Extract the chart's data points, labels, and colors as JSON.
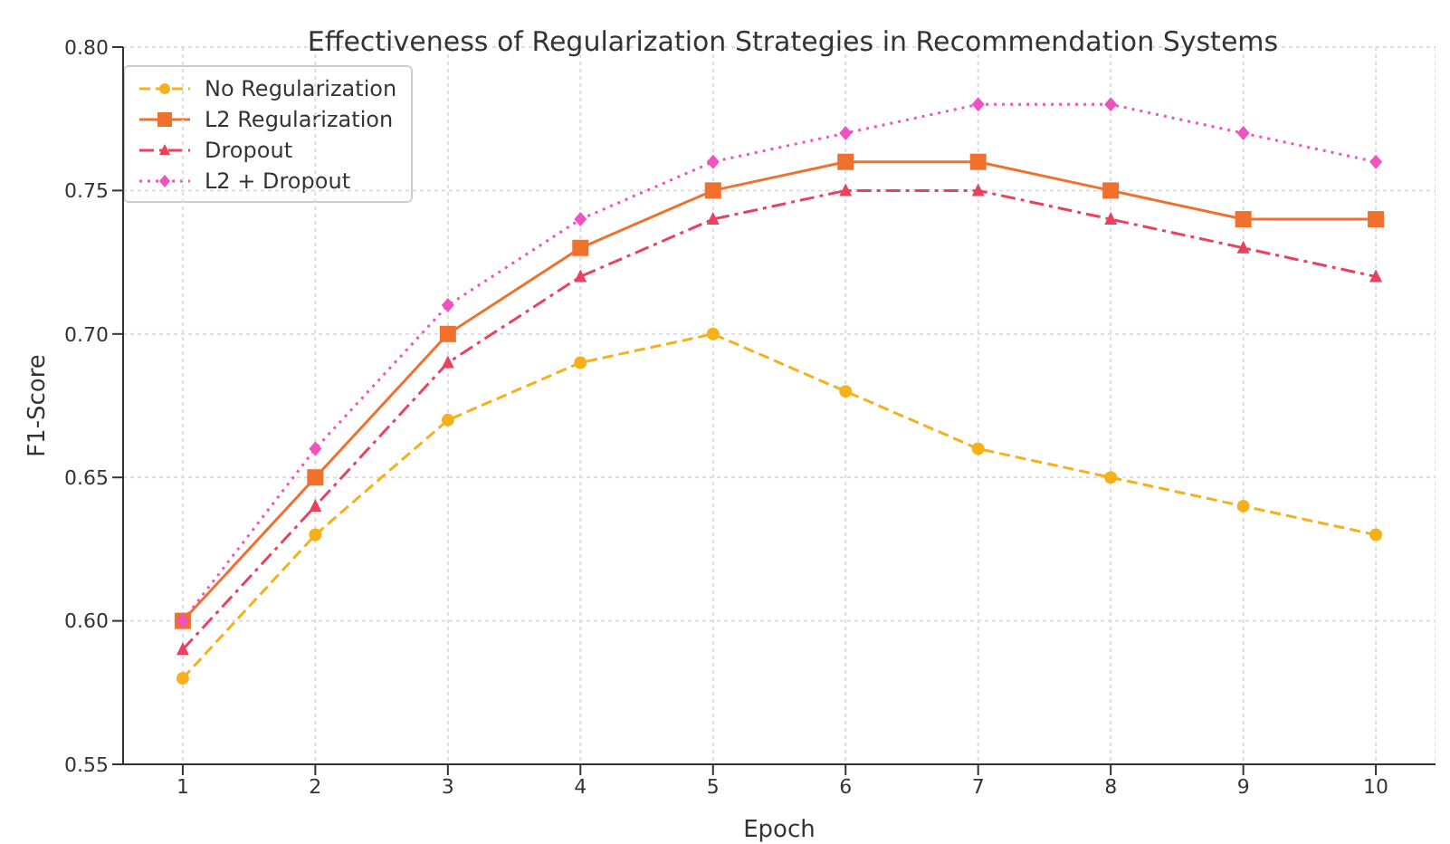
{
  "chart_data": {
    "type": "line",
    "title": "Effectiveness of Regularization Strategies in Recommendation Systems",
    "xlabel": "Epoch",
    "ylabel": "F1-Score",
    "x": [
      1,
      2,
      3,
      4,
      5,
      6,
      7,
      8,
      9,
      10
    ],
    "xlim": [
      0.55,
      10.45
    ],
    "xticks": [
      1,
      2,
      3,
      4,
      5,
      6,
      7,
      8,
      9,
      10
    ],
    "ylim": [
      0.55,
      0.8
    ],
    "yticks": [
      {
        "value": 0.55,
        "label": "0.55"
      },
      {
        "value": 0.6,
        "label": "0.60"
      },
      {
        "value": 0.65,
        "label": "0.65"
      },
      {
        "value": 0.7,
        "label": "0.70"
      },
      {
        "value": 0.75,
        "label": "0.75"
      },
      {
        "value": 0.8,
        "label": "0.80"
      }
    ],
    "grid": true,
    "legend": "top left",
    "series": [
      {
        "name": "No Regularization",
        "color": "#f5b01a",
        "marker": "circle",
        "line_style": "dashed",
        "values": [
          0.58,
          0.63,
          0.67,
          0.69,
          0.7,
          0.68,
          0.66,
          0.65,
          0.64,
          0.63
        ]
      },
      {
        "name": "L2 Regularization",
        "color": "#f0702e",
        "marker": "square",
        "line_style": "solid",
        "values": [
          0.6,
          0.65,
          0.7,
          0.73,
          0.75,
          0.76,
          0.76,
          0.75,
          0.74,
          0.74
        ]
      },
      {
        "name": "Dropout",
        "color": "#e8425e",
        "marker": "triangle",
        "line_style": "dashdot",
        "values": [
          0.59,
          0.64,
          0.69,
          0.72,
          0.74,
          0.75,
          0.75,
          0.74,
          0.73,
          0.72
        ]
      },
      {
        "name": "L2 + Dropout",
        "color": "#f052c0",
        "marker": "diamond",
        "line_style": "dotted",
        "values": [
          0.6,
          0.66,
          0.71,
          0.74,
          0.76,
          0.77,
          0.78,
          0.78,
          0.77,
          0.76
        ]
      }
    ]
  }
}
